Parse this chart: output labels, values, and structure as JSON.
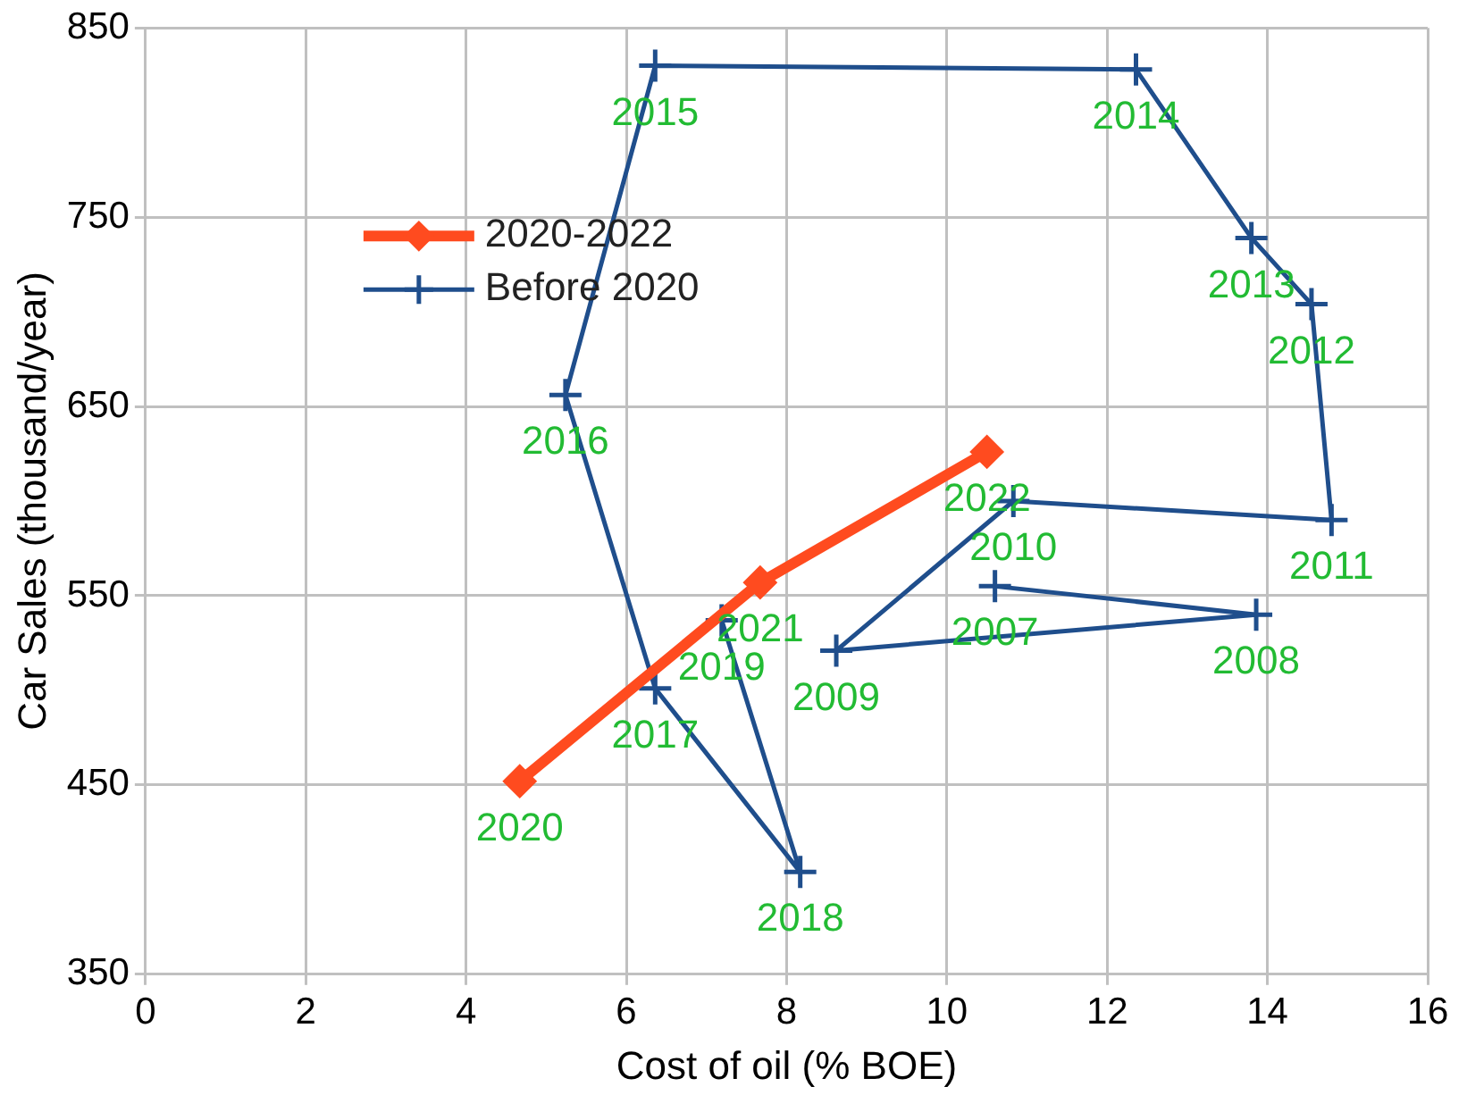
{
  "chart_data": {
    "type": "line",
    "xlabel": "Cost of oil (% BOE)",
    "ylabel": "Car Sales (thousand/year)",
    "xlim": [
      0,
      16
    ],
    "xticks": [
      0,
      2,
      4,
      6,
      8,
      10,
      12,
      14,
      16
    ],
    "ylim": [
      350,
      850
    ],
    "yticks": [
      350,
      450,
      550,
      650,
      750,
      850
    ],
    "grid": true,
    "legend": "top",
    "series": [
      {
        "name": "2020-2022",
        "color": "#ff4b1f",
        "marker": "diamond",
        "x": [
          4.67,
          7.67,
          10.5
        ],
        "values": [
          452,
          557,
          626
        ]
      },
      {
        "name": "Before 2020",
        "color": "#1f4e8c",
        "marker": "cross",
        "x": [
          10.6,
          13.86,
          8.62,
          10.83,
          14.8,
          14.55,
          13.8,
          12.36,
          6.36,
          5.24,
          6.36,
          8.17,
          7.19
        ],
        "values": [
          555,
          540,
          521,
          600,
          590,
          704,
          739,
          828,
          830,
          656,
          501,
          404,
          537
        ]
      }
    ],
    "annotations": [
      {
        "text": "2007",
        "x": 10.6,
        "y": 555
      },
      {
        "text": "2008",
        "x": 13.86,
        "y": 540
      },
      {
        "text": "2009",
        "x": 8.62,
        "y": 521
      },
      {
        "text": "2010",
        "x": 10.83,
        "y": 600
      },
      {
        "text": "2011",
        "x": 14.8,
        "y": 590
      },
      {
        "text": "2012",
        "x": 14.55,
        "y": 704
      },
      {
        "text": "2013",
        "x": 13.8,
        "y": 739
      },
      {
        "text": "2014",
        "x": 12.36,
        "y": 828
      },
      {
        "text": "2015",
        "x": 6.36,
        "y": 830
      },
      {
        "text": "2016",
        "x": 5.24,
        "y": 656
      },
      {
        "text": "2017",
        "x": 6.36,
        "y": 501
      },
      {
        "text": "2018",
        "x": 8.17,
        "y": 404
      },
      {
        "text": "2019",
        "x": 7.19,
        "y": 537
      },
      {
        "text": "2020",
        "x": 4.67,
        "y": 452
      },
      {
        "text": "2021",
        "x": 7.67,
        "y": 557
      },
      {
        "text": "2022",
        "x": 10.5,
        "y": 626
      }
    ]
  }
}
